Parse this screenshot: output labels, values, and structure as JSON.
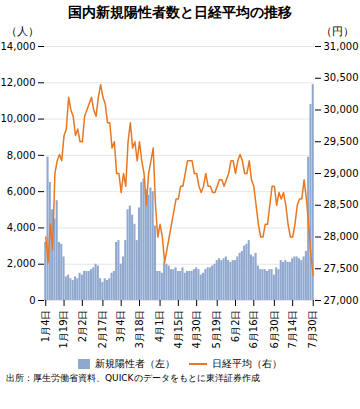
{
  "chart_data": {
    "type": "bar",
    "title": "国内新規陽性者数と日経平均の推移",
    "ylabel": "（人）",
    "y2label": "（円）",
    "source": "出所：厚生労働省資料、QUICKのデータをもとに東洋証券作成",
    "categories": [
      "1月4日",
      null,
      null,
      null,
      null,
      null,
      null,
      null,
      "1月19日",
      null,
      null,
      null,
      null,
      null,
      null,
      null,
      "2月2日",
      null,
      null,
      null,
      null,
      null,
      null,
      null,
      null,
      "2月17日",
      null,
      null,
      null,
      null,
      null,
      null,
      null,
      "3月4日",
      null,
      null,
      null,
      null,
      null,
      null,
      null,
      "3月18日",
      null,
      null,
      null,
      null,
      null,
      null,
      null,
      null,
      "4月1日",
      null,
      null,
      null,
      null,
      null,
      null,
      null,
      "4月15日",
      null,
      null,
      null,
      null,
      null,
      null,
      null,
      "4月30日",
      null,
      null,
      null,
      null,
      null,
      null,
      null,
      null,
      "5月19日",
      null,
      null,
      null,
      null,
      null,
      null,
      null,
      "6月2日",
      null,
      null,
      null,
      null,
      null,
      null,
      null,
      "6月16日",
      null,
      null,
      null,
      null,
      null,
      null,
      null,
      null,
      "6月30日",
      null,
      null,
      null,
      null,
      null,
      null,
      null,
      "7月14日",
      null,
      null,
      null,
      null,
      null,
      null,
      null,
      null,
      "7月30日"
    ],
    "series": [
      {
        "name": "新規陽性者（左）",
        "type": "bar",
        "color": "#8fa8d0",
        "values": [
          3200,
          7900,
          6500,
          5000,
          4500,
          5500,
          3200,
          3100,
          2400,
          1300,
          1400,
          1200,
          1100,
          1300,
          1200,
          1500,
          1400,
          1600,
          1600,
          1600,
          1700,
          1800,
          2000,
          1900,
          1200,
          1000,
          1200,
          1100,
          1200,
          1500,
          1600,
          3200,
          3300,
          2000,
          2400,
          3300,
          5000,
          5200,
          4700,
          4200,
          3300,
          5100,
          6500,
          6700,
          6100,
          5800,
          6200,
          6000,
          4100,
          1600,
          1600,
          1500,
          2100,
          2000,
          1900,
          1700,
          1700,
          1800,
          1600,
          1600,
          1800,
          1500,
          1600,
          1600,
          1600,
          1700,
          1800,
          1700,
          1400,
          1500,
          1700,
          1800,
          1800,
          1900,
          2000,
          2200,
          2300,
          2200,
          2300,
          2400,
          2200,
          2100,
          2200,
          2200,
          2400,
          2600,
          2700,
          3000,
          3100,
          3300,
          2500,
          2400,
          2600,
          1900,
          1700,
          1700,
          1700,
          1600,
          1700,
          1700,
          1400,
          1800,
          1700,
          2200,
          2100,
          2200,
          2100,
          2100,
          2300,
          2400,
          2400,
          2300,
          2200,
          2400,
          2700,
          7900,
          10800,
          11900
        ]
      },
      {
        "name": "日経平均（右）",
        "type": "line",
        "color": "#e87722",
        "axis": "y2",
        "values": [
          28000,
          27600,
          28200,
          27800,
          29000,
          29200,
          29300,
          29200,
          29600,
          29700,
          30200,
          30000,
          29900,
          29600,
          29700,
          29500,
          29500,
          29900,
          30000,
          30100,
          30200,
          30000,
          29900,
          30200,
          30400,
          30200,
          30100,
          29800,
          29800,
          29400,
          29500,
          29000,
          29000,
          28700,
          29000,
          28800,
          29500,
          29800,
          29400,
          29500,
          29200,
          29500,
          29200,
          29000,
          28500,
          29000,
          29200,
          29400,
          28500,
          28000,
          28200,
          28000,
          27600,
          27800,
          28000,
          28200,
          28400,
          28600,
          28600,
          28800,
          28800,
          29000,
          29200,
          29200,
          29200,
          29000,
          29000,
          28800,
          28700,
          28800,
          29000,
          28800,
          28800,
          28700,
          28700,
          28800,
          28900,
          28900,
          28800,
          28900,
          29000,
          29200,
          29200,
          29000,
          29200,
          29300,
          29200,
          29000,
          29000,
          29200,
          28900,
          28800,
          28500,
          28200,
          28000,
          28000,
          28200,
          28200,
          28500,
          28800,
          28800,
          28500,
          28700,
          28600,
          28700,
          28500,
          28200,
          28000,
          28000,
          28200,
          28500,
          28600,
          28600,
          28900,
          28600,
          28200,
          27700,
          27400
        ]
      }
    ],
    "ylim": [
      0,
      14000
    ],
    "yticks": [
      0,
      {
        "value": 2000,
        "label": "2,000"
      },
      {
        "value": 4000,
        "label": "4,000"
      },
      {
        "value": 6000,
        "label": "6,000"
      },
      {
        "value": 8000,
        "label": "8,000"
      },
      {
        "value": 10000,
        "label": "10,000"
      },
      {
        "value": 12000,
        "label": "12,000"
      },
      {
        "value": 14000,
        "label": "14,000"
      }
    ],
    "y2lim": [
      27000,
      31000
    ],
    "y2ticks": [
      {
        "value": 27000,
        "label": "27,000"
      },
      {
        "value": 27500,
        "label": "27,500"
      },
      {
        "value": 28000,
        "label": "28,000"
      },
      {
        "value": 28500,
        "label": "28,500"
      },
      {
        "value": 29000,
        "label": "29,000"
      },
      {
        "value": 29500,
        "label": "29,500"
      },
      {
        "value": 30000,
        "label": "30,000"
      },
      {
        "value": 30500,
        "label": "30,500"
      },
      {
        "value": 31000,
        "label": "31,000"
      }
    ],
    "grid": true,
    "legend": "bottom"
  }
}
